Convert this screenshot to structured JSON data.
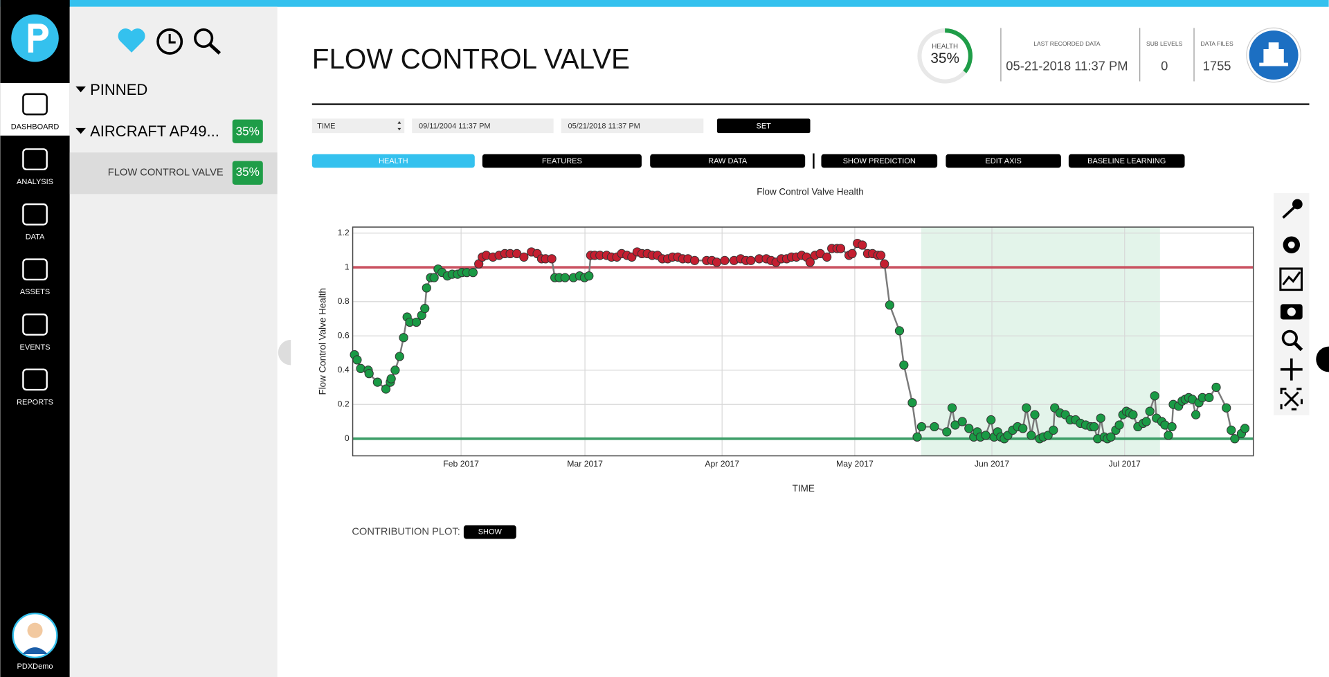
{
  "nav": {
    "items": [
      "DASHBOARD",
      "ANALYSIS",
      "DATA",
      "ASSETS",
      "EVENTS",
      "REPORTS"
    ],
    "user": "PDXDemo"
  },
  "sidebar": {
    "pinned": "PINNED",
    "group": {
      "label": "AIRCRAFT AP49...",
      "health": "35%"
    },
    "item": {
      "label": "FLOW CONTROL VALVE",
      "health": "35%"
    }
  },
  "header": {
    "title": "FLOW CONTROL VALVE",
    "health_label": "HEALTH",
    "health_value": "35%",
    "stats": [
      {
        "label": "LAST RECORDED DATA",
        "value": "05-21-2018 11:37 PM"
      },
      {
        "label": "SUB LEVELS",
        "value": "0"
      },
      {
        "label": "DATA FILES",
        "value": "1755"
      }
    ]
  },
  "controls": {
    "select": "TIME",
    "start": "09/11/2004 11:37 PM",
    "end": "05/21/2018 11:37 PM",
    "set": "SET"
  },
  "tabs": [
    "HEALTH",
    "FEATURES",
    "RAW DATA",
    "SHOW PREDICTION",
    "EDIT AXIS",
    "BASELINE LEARNING"
  ],
  "contribution": {
    "label": "CONTRIBUTION PLOT:",
    "button": "SHOW"
  },
  "chart_data": {
    "type": "line",
    "title": "Flow Control Valve Health",
    "x_label": "TIME",
    "y_label": "Flow Control Valve Health",
    "x": [
      6.9,
      7.5,
      8.3,
      10,
      10.2,
      12.1,
      14,
      15,
      15.2,
      16.1,
      17.1,
      18,
      18.8,
      19.4,
      20.9,
      22.1,
      22.8,
      23.2,
      24.1,
      24.9,
      25.8,
      26.7,
      27.9,
      29,
      30.2,
      31.2,
      32.3,
      33.7,
      35,
      35.8,
      36.7,
      38.2,
      39.6,
      40.9,
      42.1,
      43.6,
      45.2,
      46.9,
      48.2,
      49.2,
      50.1,
      51.5,
      52.2,
      53.2,
      54.5,
      56.4,
      57.8,
      58.9,
      59.9,
      60.3,
      61.2,
      62.4,
      63.9,
      65,
      66.2,
      67.3,
      68.5,
      69.6,
      70.8,
      71.9,
      73.1,
      74.2,
      75.4,
      76.5,
      77.7,
      78.8,
      80,
      81.1,
      82.3,
      83.8,
      86.5,
      87.7,
      88.8,
      90.6,
      92.7,
      94.2,
      95.4,
      96.5,
      98.4,
      100,
      101.1,
      102.2,
      103.4,
      104.6,
      105.7,
      106.8,
      108,
      109.1,
      109.9,
      111,
      112.2,
      113.7,
      114.8,
      116,
      116.8,
      118.7,
      119.4,
      120.6,
      121.7,
      122.9,
      124,
      125.2,
      125.9,
      126.7,
      127.9,
      130.1,
      131.1,
      133,
      134.1,
      135.1,
      138,
      140.8,
      142,
      142.7,
      144.3,
      145.8,
      146.9,
      147.7,
      148.4,
      149.6,
      150.8,
      151.5,
      152.3,
      153,
      153.8,
      154.6,
      155.7,
      156.8,
      158,
      158.8,
      159.9,
      160.7,
      161.8,
      162.6,
      163.7,
      164.9,
      165.2,
      166.4,
      167.6,
      168.7,
      169.9,
      171,
      172.2,
      173.4,
      174.1,
      174.9,
      175.6,
      176.4,
      177.1,
      177.9,
      179,
      179.8,
      180.6,
      181.4,
      182.1,
      182.9,
      184,
      185.2,
      185.9,
      186.7,
      187.8,
      188.2,
      189.4,
      190.1,
      190.9,
      191.7,
      192,
      193.2,
      194,
      194.7,
      195.5,
      196.3,
      197.1,
      197.8,
      198.6,
      200.1,
      201.7,
      204,
      205.1,
      205.9,
      207.4,
      208.2
    ],
    "values": [
      0.49,
      0.46,
      0.41,
      0.4,
      0.38,
      0.33,
      0.29,
      0.33,
      0.35,
      0.4,
      0.48,
      0.59,
      0.71,
      0.68,
      0.68,
      0.72,
      0.76,
      0.88,
      0.94,
      0.94,
      0.99,
      0.97,
      0.95,
      0.96,
      0.96,
      0.97,
      0.97,
      0.97,
      1.02,
      1.06,
      1.07,
      1.06,
      1.07,
      1.08,
      1.08,
      1.08,
      1.06,
      1.09,
      1.08,
      1.05,
      1.05,
      1.05,
      0.94,
      0.94,
      0.94,
      0.94,
      0.95,
      0.94,
      0.95,
      1.07,
      1.07,
      1.07,
      1.07,
      1.06,
      1.06,
      1.08,
      1.07,
      1.06,
      1.09,
      1.08,
      1.08,
      1.07,
      1.07,
      1.05,
      1.05,
      1.06,
      1.06,
      1.05,
      1.05,
      1.04,
      1.04,
      1.04,
      1.03,
      1.04,
      1.04,
      1.05,
      1.04,
      1.04,
      1.05,
      1.05,
      1.04,
      1.03,
      1.05,
      1.05,
      1.06,
      1.06,
      1.07,
      1.06,
      1.03,
      1.07,
      1.08,
      1.06,
      1.11,
      1.11,
      1.11,
      1.07,
      1.08,
      1.14,
      1.13,
      1.08,
      1.08,
      1.07,
      1.07,
      1.02,
      0.78,
      0.63,
      0.43,
      0.21,
      0.01,
      0.07,
      0.07,
      0.04,
      0.18,
      0.08,
      0.1,
      0.06,
      0.01,
      0.04,
      0.01,
      0.02,
      0.11,
      0.01,
      0.04,
      0.01,
      0,
      0.02,
      0.05,
      0.07,
      0.06,
      0.18,
      0.02,
      0.14,
      0,
      0.01,
      0.02,
      0.05,
      0.18,
      0.15,
      0.14,
      0.11,
      0.11,
      0.09,
      0.08,
      0.07,
      0.07,
      0,
      0.12,
      0.01,
      0,
      0.01,
      0.05,
      0.08,
      0.14,
      0.16,
      0.15,
      0.14,
      0.07,
      0.09,
      0.1,
      0.16,
      0.25,
      0.12,
      0.1,
      0.08,
      0.02,
      0.07,
      0.2,
      0.19,
      0.22,
      0.23,
      0.24,
      0.23,
      0.14,
      0.21,
      0.24,
      0.24,
      0.3,
      0.18,
      0.05,
      0,
      0.03,
      0.06
    ],
    "line_color": "#7a7a7a",
    "above_color": "#c41e30",
    "below_color": "#1a9a45",
    "reference_lines": [
      {
        "value": 1,
        "color": "#c9505f"
      },
      {
        "value": 0,
        "color": "#3d9e68"
      }
    ],
    "highlight": {
      "x": [
        135,
        189
      ],
      "color": "#e3f4ea"
    },
    "xlim": [
      6.5,
      210.1
    ],
    "ylim": [
      -0.1,
      1.235
    ],
    "xticks": [
      {
        "value": 31,
        "label": "Feb 2017"
      },
      {
        "value": 59,
        "label": "Mar 2017"
      },
      {
        "value": 90,
        "label": "Apr 2017"
      },
      {
        "value": 120,
        "label": "May 2017"
      },
      {
        "value": 151,
        "label": "Jun 2017"
      },
      {
        "value": 181,
        "label": "Jul 2017"
      }
    ],
    "yticks": [
      0,
      0.2,
      0.4,
      0.6,
      0.8,
      1,
      1.2
    ],
    "grid": true
  }
}
